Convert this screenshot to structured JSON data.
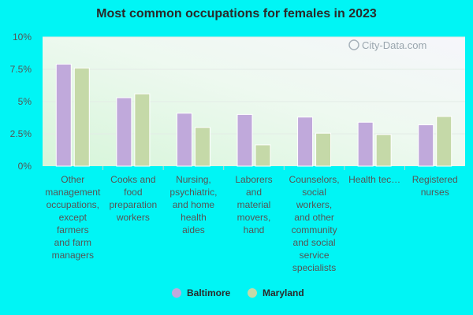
{
  "chart_data": {
    "type": "bar",
    "title": "Most common occupations for females in 2023",
    "categories": [
      [
        "Other",
        "management",
        "occupations,",
        "except",
        "farmers",
        "and farm",
        "managers"
      ],
      [
        "Cooks and",
        "food",
        "preparation",
        "workers"
      ],
      [
        "Nursing,",
        "psychiatric,",
        "and home",
        "health",
        "aides"
      ],
      [
        "Laborers",
        "and",
        "material",
        "movers,",
        "hand"
      ],
      [
        "Counselors,",
        "social",
        "workers,",
        "and other",
        "community",
        "and social",
        "service",
        "specialists"
      ],
      [
        "Health tec…"
      ],
      [
        "Registered",
        "nurses"
      ]
    ],
    "series": [
      {
        "name": "Baltimore",
        "color": "#c0a9db",
        "values": [
          7.9,
          5.3,
          4.1,
          4.0,
          3.8,
          3.4,
          3.2
        ]
      },
      {
        "name": "Maryland",
        "color": "#c5d9a8",
        "values": [
          7.6,
          5.6,
          3.0,
          1.65,
          2.55,
          2.45,
          3.85
        ]
      }
    ],
    "yticks": [
      "0%",
      "2.5%",
      "5%",
      "7.5%",
      "10%"
    ],
    "ylim": [
      0,
      10
    ],
    "xlabel": "",
    "ylabel": "",
    "legend_position": "bottom-center",
    "watermark": "City-Data.com"
  }
}
